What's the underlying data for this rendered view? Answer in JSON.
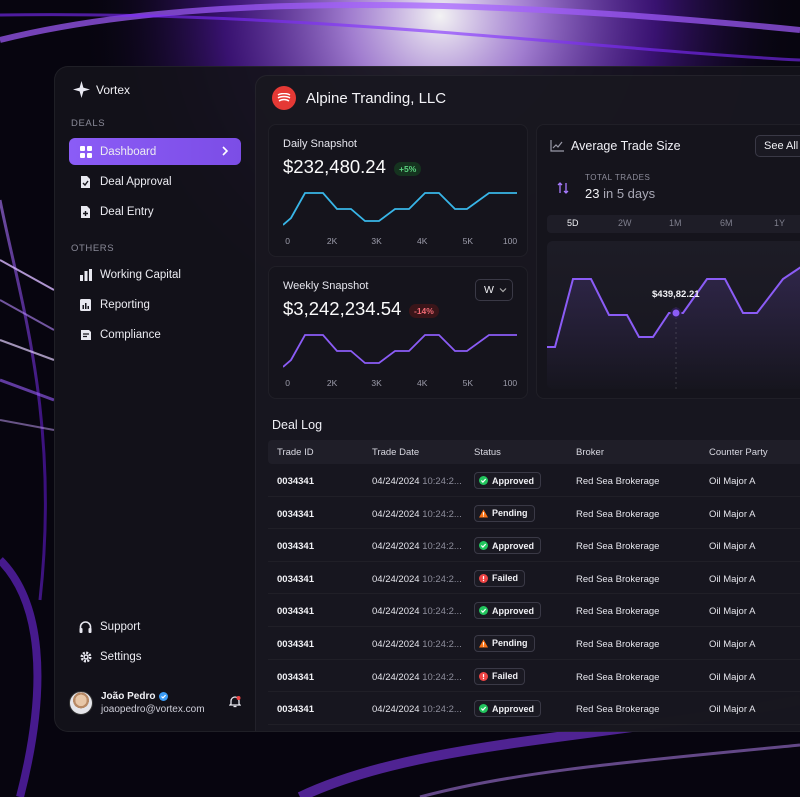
{
  "colors": {
    "accent": "#8b5cf6",
    "daily_line": "#38b6e8",
    "weekly_line": "#8b5cf6",
    "approved": "#22c55e",
    "pending": "#f97316",
    "failed": "#ef4444"
  },
  "brand": {
    "name": "Vortex"
  },
  "sidebar": {
    "deals_label": "DEALS",
    "deals": [
      {
        "label": "Dashboard",
        "icon": "grid-icon",
        "active": true
      },
      {
        "label": "Deal Approval",
        "icon": "file-check-icon"
      },
      {
        "label": "Deal Entry",
        "icon": "file-plus-icon"
      }
    ],
    "others_label": "OTHERS",
    "others": [
      {
        "label": "Working Capital",
        "icon": "bar-chart-icon"
      },
      {
        "label": "Reporting",
        "icon": "report-icon"
      },
      {
        "label": "Compliance",
        "icon": "shield-doc-icon"
      }
    ],
    "bottom": [
      {
        "label": "Support",
        "icon": "headphones-icon"
      },
      {
        "label": "Settings",
        "icon": "gear-icon"
      }
    ]
  },
  "user": {
    "name": "João Pedro",
    "email": "joaopedro@vortex.com",
    "verified": true
  },
  "header": {
    "company": "Alpine Tranding, LLC"
  },
  "daily": {
    "title": "Daily Snapshot",
    "value": "$232,480.24",
    "change": "+5%",
    "ticks": [
      "0",
      "2K",
      "3K",
      "4K",
      "5K",
      "100"
    ]
  },
  "weekly": {
    "title": "Weekly Snapshot",
    "value": "$3,242,234.54",
    "change": "-14%",
    "period": "W",
    "ticks": [
      "0",
      "2K",
      "3K",
      "4K",
      "5K",
      "100"
    ]
  },
  "avg_trade": {
    "title": "Average Trade Size",
    "see_all": "See All",
    "total_label": "TOTAL TRADES",
    "total_value": "23",
    "total_suffix": "in 5 days",
    "ranges": [
      "5D",
      "2W",
      "1M",
      "6M",
      "1Y"
    ],
    "selected_range": "5D",
    "tooltip": "$439,82.21"
  },
  "deal_log": {
    "title": "Deal Log",
    "columns": [
      "Trade ID",
      "Trade Date",
      "Status",
      "Broker",
      "Counter Party"
    ],
    "rows": [
      {
        "id": "0034341",
        "date": "04/24/2024",
        "time": "10:24:2...",
        "status": "Approved",
        "broker": "Red Sea Brokerage",
        "party": "Oil Major A"
      },
      {
        "id": "0034341",
        "date": "04/24/2024",
        "time": "10:24:2...",
        "status": "Pending",
        "broker": "Red Sea Brokerage",
        "party": "Oil Major A"
      },
      {
        "id": "0034341",
        "date": "04/24/2024",
        "time": "10:24:2...",
        "status": "Approved",
        "broker": "Red Sea Brokerage",
        "party": "Oil Major A"
      },
      {
        "id": "0034341",
        "date": "04/24/2024",
        "time": "10:24:2...",
        "status": "Failed",
        "broker": "Red Sea Brokerage",
        "party": "Oil Major A"
      },
      {
        "id": "0034341",
        "date": "04/24/2024",
        "time": "10:24:2...",
        "status": "Approved",
        "broker": "Red Sea Brokerage",
        "party": "Oil Major A"
      },
      {
        "id": "0034341",
        "date": "04/24/2024",
        "time": "10:24:2...",
        "status": "Pending",
        "broker": "Red Sea Brokerage",
        "party": "Oil Major A"
      },
      {
        "id": "0034341",
        "date": "04/24/2024",
        "time": "10:24:2...",
        "status": "Failed",
        "broker": "Red Sea Brokerage",
        "party": "Oil Major A"
      },
      {
        "id": "0034341",
        "date": "04/24/2024",
        "time": "10:24:2...",
        "status": "Approved",
        "broker": "Red Sea Brokerage",
        "party": "Oil Major A"
      }
    ]
  }
}
